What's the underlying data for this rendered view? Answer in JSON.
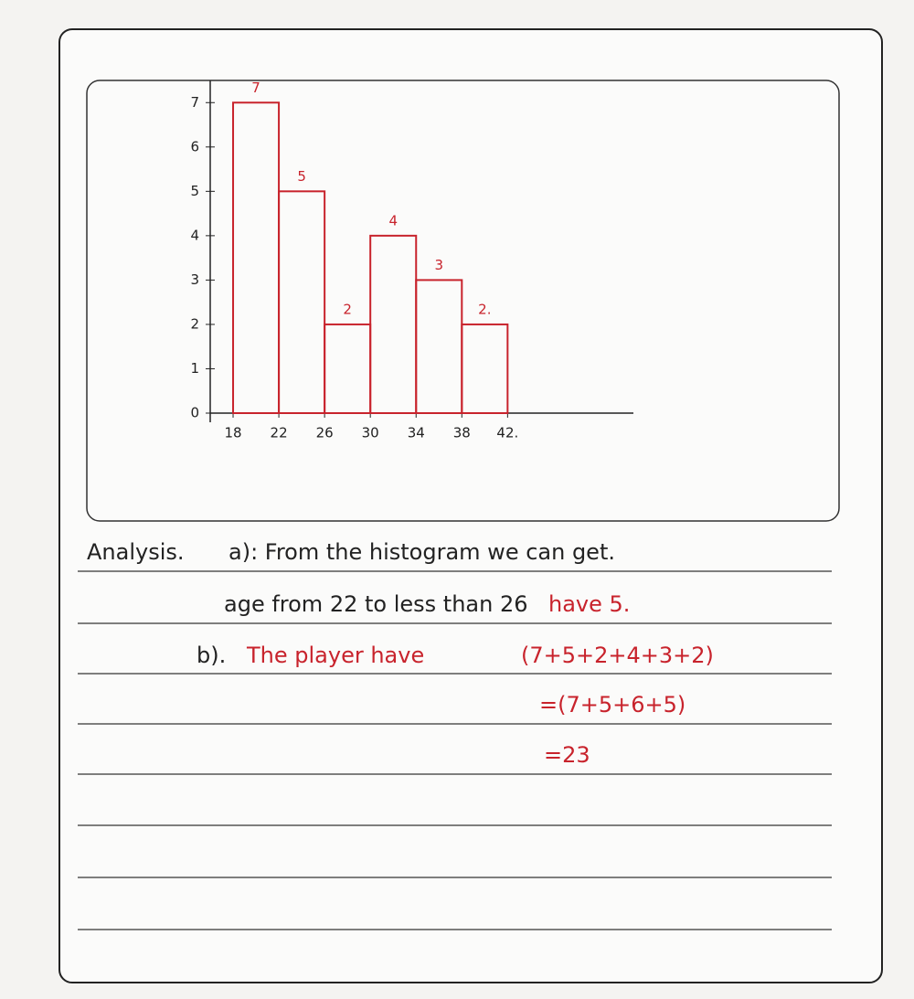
{
  "chart_data": {
    "type": "histogram",
    "bins": [
      18,
      22,
      26,
      30,
      34,
      38,
      42
    ],
    "values": [
      7,
      5,
      2,
      4,
      3,
      2
    ],
    "value_labels": [
      "7",
      "5",
      "2",
      "4",
      "3",
      "2."
    ],
    "color": "#c8232c",
    "xlim": [
      16,
      53
    ],
    "ylim": [
      0,
      7.5
    ],
    "xticks": [
      18,
      22,
      26,
      30,
      34,
      38,
      {
        "value": 42,
        "label": "42."
      }
    ],
    "yticks": [
      0,
      1,
      2,
      3,
      4,
      5,
      6,
      7
    ]
  },
  "analysis": {
    "heading": "Analysis.",
    "lines": [
      [
        "a): From the histogram we can get."
      ],
      [
        "age from 22 to less than 26",
        "have 5."
      ],
      [
        "b).",
        "The player have",
        "(7+5+2+4+3+2)"
      ],
      [
        "=(7+5+6+5)"
      ],
      [
        "=23"
      ]
    ]
  }
}
